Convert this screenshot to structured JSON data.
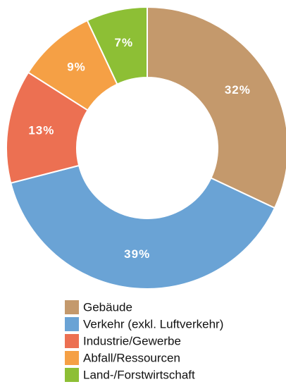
{
  "chart_data": {
    "type": "donut",
    "categories": [
      "Gebäude",
      "Verkehr (exkl. Luftverkehr)",
      "Industrie/Gewerbe",
      "Abfall/Ressourcen",
      "Land-/Forstwirtschaft"
    ],
    "values": [
      32,
      39,
      13,
      9,
      7
    ],
    "value_labels": [
      "32%",
      "39%",
      "13%",
      "9%",
      "7%"
    ],
    "colors": [
      "#c4996c",
      "#6aa3d5",
      "#ec7052",
      "#f5a045",
      "#8dbf35"
    ]
  }
}
